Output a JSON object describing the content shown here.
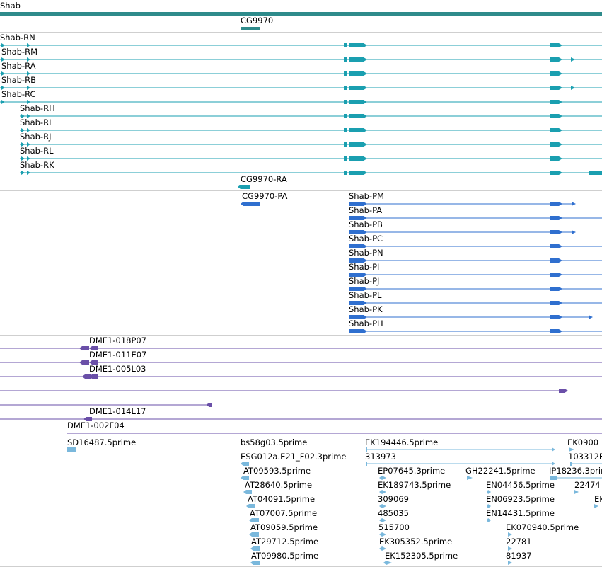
{
  "colors": {
    "gene": "#2e8b8b",
    "transcript": "#1a9fb0",
    "protein": "#2f6fcf",
    "clone": "#6a4fa8",
    "est": "#7ab8dc",
    "separator": "#cfcfcf"
  },
  "gene_track": {
    "main_gene": "Shab",
    "overlapping_gene": "CG9970"
  },
  "transcripts": [
    "Shab-RN",
    "Shab-RM",
    "Shab-RA",
    "Shab-RB",
    "Shab-RC",
    "Shab-RH",
    "Shab-RI",
    "Shab-RJ",
    "Shab-RL",
    "Shab-RK",
    "CG9970-RA"
  ],
  "proteins": [
    "CG9970-PA",
    "Shab-PM",
    "Shab-PA",
    "Shab-PB",
    "Shab-PC",
    "Shab-PN",
    "Shab-PI",
    "Shab-PJ",
    "Shab-PL",
    "Shab-PK",
    "Shab-PH"
  ],
  "clones": [
    "DME1-018P07",
    "DME1-011E07",
    "DME1-005L03",
    "DME1-014L17",
    "DME1-002F04"
  ],
  "ests": [
    "SD16487.5prime",
    "bs58g03.5prime",
    "ESG012a.E21_F02.3prime",
    "AT09593.5prime",
    "AT28640.5prime",
    "AT04091.5prime",
    "AT07007.5prime",
    "AT09059.5prime",
    "AT29712.5prime",
    "AT09980.5prime",
    "EK194446.5prime",
    "313973",
    "EP07645.3prime",
    "EK189743.5prime",
    "309069",
    "485035",
    "515700",
    "EK305352.5prime",
    "EK152305.5prime",
    "GH22241.5prime",
    "EN04456.5prime",
    "EN06923.5prime",
    "EN14431.5prime",
    "EK070940.5prime",
    "22781",
    "81937",
    "IP18236.3prime",
    "EK0900",
    "103312E",
    "22474",
    "EK"
  ]
}
